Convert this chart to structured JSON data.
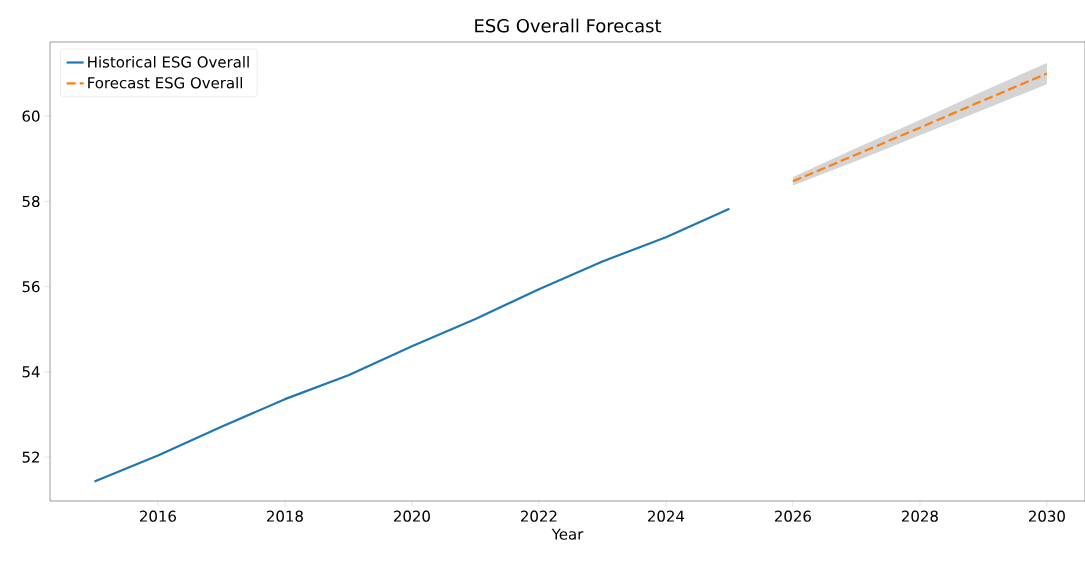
{
  "chart_data": {
    "type": "line",
    "title": "ESG Overall Forecast",
    "xlabel": "Year",
    "xlim": [
      2014.3,
      2030.6
    ],
    "ylim": [
      50.97,
      61.74
    ],
    "xticks": [
      2016,
      2018,
      2020,
      2022,
      2024,
      2026,
      2028,
      2030
    ],
    "yticks": [
      52,
      54,
      56,
      58,
      60
    ],
    "legend": "top left",
    "grid": false,
    "series": [
      {
        "name": "Historical ESG Overall",
        "color": "#1f77b4",
        "line_style": "solid",
        "x": [
          2015,
          2016,
          2017,
          2018,
          2019,
          2020,
          2021,
          2022,
          2023,
          2024,
          2025
        ],
        "values": [
          51.43,
          52.04,
          52.71,
          53.36,
          53.92,
          54.6,
          55.24,
          55.94,
          56.59,
          57.16,
          57.83
        ]
      },
      {
        "name": "Forecast ESG Overall",
        "color": "#ff7f0e",
        "line_style": "dashed",
        "x": [
          2026,
          2027,
          2028,
          2029,
          2030
        ],
        "values": [
          58.47,
          59.1,
          59.73,
          60.37,
          61.0
        ],
        "lower": [
          58.37,
          58.95,
          59.55,
          60.15,
          60.75
        ],
        "upper": [
          58.57,
          59.25,
          59.91,
          60.59,
          61.25
        ]
      }
    ]
  }
}
